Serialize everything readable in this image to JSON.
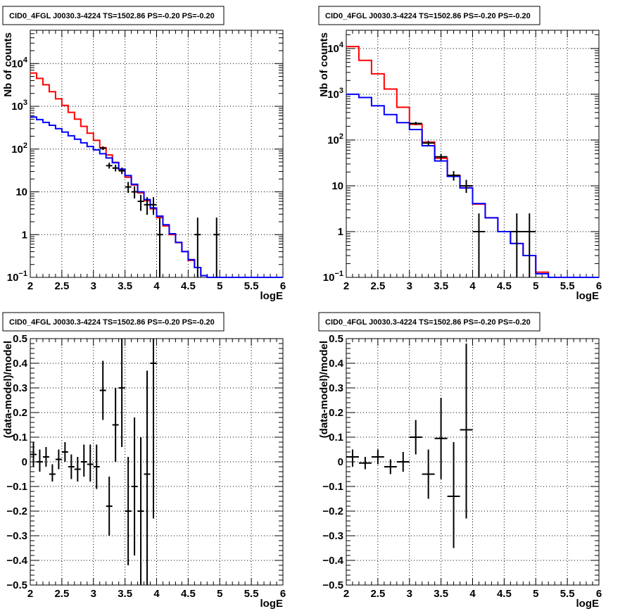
{
  "chart_data": [
    {
      "type": "line",
      "title": "CID0_4FGL J0030.3-4224 TS=1502.86 PS=-0.20 PS=-0.20",
      "xlabel": "logE",
      "ylabel": "Nb of counts",
      "xlim": [
        2,
        6
      ],
      "ylim": [
        0.1,
        60000
      ],
      "yscale": "log",
      "xticks": [
        "2",
        "2.5",
        "3",
        "3.5",
        "4",
        "4.5",
        "5",
        "5.5",
        "6"
      ],
      "yticks": [
        {
          "value": 0.1,
          "base": "10",
          "exp": "−1"
        },
        {
          "value": 1,
          "label": "1"
        },
        {
          "value": 10,
          "label": "10"
        },
        {
          "value": 100,
          "base": "10",
          "exp": "2"
        },
        {
          "value": 1000,
          "base": "10",
          "exp": "3"
        },
        {
          "value": 10000,
          "base": "10",
          "exp": "4"
        }
      ],
      "grid": true,
      "bin_edges": [
        2.0,
        2.1,
        2.2,
        2.3,
        2.4,
        2.5,
        2.6,
        2.7,
        2.8,
        2.9,
        3.0,
        3.1,
        3.2,
        3.3,
        3.4,
        3.5,
        3.6,
        3.7,
        3.8,
        3.9,
        4.0,
        4.1,
        4.2,
        4.3,
        4.4,
        4.5,
        4.6,
        4.7,
        4.8,
        4.9,
        5.0,
        5.1,
        5.2,
        5.3,
        5.4,
        5.5,
        5.6,
        5.7,
        5.8,
        5.9,
        6.0
      ],
      "series": [
        {
          "color": "#ff0000",
          "values": [
            6000,
            4500,
            3200,
            2200,
            1500,
            1050,
            720,
            500,
            340,
            235,
            160,
            108,
            73,
            49,
            33,
            22,
            14.5,
            9.5,
            6.2,
            4.0,
            2.5,
            1.6,
            1.0,
            0.65,
            0.4,
            0.25,
            0.17,
            0.11,
            0.07,
            0.05,
            0.1,
            0.1,
            0.1,
            0.1,
            0.1,
            0.1,
            0.1,
            0.1,
            0.1,
            0.1
          ]
        },
        {
          "color": "#0000ff",
          "values": [
            560,
            490,
            420,
            360,
            300,
            250,
            205,
            170,
            140,
            115,
            96,
            78,
            62,
            48,
            34,
            24,
            15,
            10,
            6.6,
            4.2,
            2.7,
            1.7,
            1.05,
            0.66,
            0.4,
            0.26,
            0.17,
            0.11,
            0.07,
            0.05,
            0.1,
            0.1,
            0.1,
            0.1,
            0.1,
            0.1,
            0.1,
            0.1,
            0.1,
            0.1
          ]
        }
      ],
      "points": [
        {
          "x": 3.15,
          "y": 105,
          "lo": 95,
          "hi": 116
        },
        {
          "x": 3.25,
          "y": 41,
          "lo": 35,
          "hi": 48
        },
        {
          "x": 3.35,
          "y": 36,
          "lo": 30,
          "hi": 43
        },
        {
          "x": 3.45,
          "y": 31,
          "lo": 26,
          "hi": 37
        },
        {
          "x": 3.55,
          "y": 13,
          "lo": 9.5,
          "hi": 17
        },
        {
          "x": 3.65,
          "y": 10,
          "lo": 7,
          "hi": 13.5
        },
        {
          "x": 3.75,
          "y": 6,
          "lo": 3.6,
          "hi": 8.5
        },
        {
          "x": 3.85,
          "y": 5,
          "lo": 2.9,
          "hi": 7.5
        },
        {
          "x": 3.95,
          "y": 5,
          "lo": 2.9,
          "hi": 7.5
        },
        {
          "x": 4.05,
          "y": 1,
          "lo": 0.1,
          "hi": 2.5
        },
        {
          "x": 4.65,
          "y": 1,
          "lo": 0.1,
          "hi": 2.5
        },
        {
          "x": 4.95,
          "y": 1,
          "lo": 0.1,
          "hi": 2.5
        }
      ]
    },
    {
      "type": "line",
      "title": "CID0_4FGL J0030.3-4224 TS=1502.86 PS=-0.20 PS=-0.20",
      "xlabel": "logE",
      "ylabel": "Nb of counts",
      "xlim": [
        2,
        6
      ],
      "ylim": [
        0.1,
        25000
      ],
      "yscale": "log",
      "xticks": [
        "2",
        "2.5",
        "3",
        "3.5",
        "4",
        "4.5",
        "5",
        "5.5",
        "6"
      ],
      "yticks": [
        {
          "value": 0.1,
          "base": "10",
          "exp": "−1"
        },
        {
          "value": 1,
          "label": "1"
        },
        {
          "value": 10,
          "label": "10"
        },
        {
          "value": 100,
          "base": "10",
          "exp": "2"
        },
        {
          "value": 1000,
          "base": "10",
          "exp": "3"
        },
        {
          "value": 10000,
          "base": "10",
          "exp": "4"
        }
      ],
      "grid": true,
      "bin_edges": [
        2.0,
        2.2,
        2.4,
        2.6,
        2.8,
        3.0,
        3.2,
        3.4,
        3.6,
        3.8,
        4.0,
        4.2,
        4.4,
        4.6,
        4.8,
        5.0,
        5.2,
        5.4,
        5.6,
        5.8,
        6.0
      ],
      "series": [
        {
          "color": "#ff0000",
          "values": [
            11000,
            5500,
            2800,
            1300,
            520,
            220,
            90,
            40,
            17,
            9,
            4.0,
            2.0,
            1.0,
            0.55,
            0.3,
            0.13,
            0.1,
            0.1,
            0.1,
            0.1
          ]
        },
        {
          "color": "#0000ff",
          "values": [
            1000,
            850,
            560,
            360,
            240,
            170,
            75,
            35,
            16,
            9,
            4.1,
            2.0,
            1.0,
            0.55,
            0.3,
            0.12,
            0.1,
            0.1,
            0.1,
            0.1
          ]
        }
      ],
      "points": [
        {
          "x": 3.1,
          "y": 230,
          "lo": 212,
          "hi": 250
        },
        {
          "x": 3.3,
          "y": 86,
          "lo": 76,
          "hi": 96
        },
        {
          "x": 3.5,
          "y": 43,
          "lo": 36,
          "hi": 50
        },
        {
          "x": 3.7,
          "y": 17,
          "lo": 13,
          "hi": 21
        },
        {
          "x": 3.9,
          "y": 10,
          "lo": 7,
          "hi": 13.5
        },
        {
          "x": 4.1,
          "y": 1,
          "lo": 0.1,
          "hi": 2.5
        },
        {
          "x": 4.7,
          "y": 1,
          "lo": 0.1,
          "hi": 2.5
        },
        {
          "x": 4.9,
          "y": 1,
          "lo": 0.1,
          "hi": 2.5
        }
      ]
    },
    {
      "type": "scatter",
      "title": "CID0_4FGL J0030.3-4224 TS=1502.86 PS=-0.20 PS=-0.20",
      "xlabel": "logE",
      "ylabel": "(data-model)/model",
      "xlim": [
        2,
        6
      ],
      "ylim": [
        -0.5,
        0.5
      ],
      "yscale": "linear",
      "xticks": [
        "2",
        "2.5",
        "3",
        "3.5",
        "4",
        "4.5",
        "5",
        "5.5",
        "6"
      ],
      "yticks": [
        {
          "value": -0.5,
          "label": "−0.5"
        },
        {
          "value": -0.4,
          "label": "−0.4"
        },
        {
          "value": -0.3,
          "label": "−0.3"
        },
        {
          "value": -0.2,
          "label": "−0.2"
        },
        {
          "value": -0.1,
          "label": "−0.1"
        },
        {
          "value": 0,
          "label": "0"
        },
        {
          "value": 0.1,
          "label": "0.1"
        },
        {
          "value": 0.2,
          "label": "0.2"
        },
        {
          "value": 0.3,
          "label": "0.3"
        },
        {
          "value": 0.4,
          "label": "0.4"
        },
        {
          "value": 0.5,
          "label": "0.5"
        }
      ],
      "grid": true,
      "xerr": 0.05,
      "points": [
        {
          "x": 2.05,
          "y": 0.03,
          "lo": -0.02,
          "hi": 0.08
        },
        {
          "x": 2.15,
          "y": 0.0,
          "lo": -0.04,
          "hi": 0.05
        },
        {
          "x": 2.25,
          "y": 0.02,
          "lo": -0.02,
          "hi": 0.06
        },
        {
          "x": 2.35,
          "y": -0.05,
          "lo": -0.08,
          "hi": -0.01
        },
        {
          "x": 2.45,
          "y": 0.01,
          "lo": -0.03,
          "hi": 0.05
        },
        {
          "x": 2.55,
          "y": 0.04,
          "lo": 0.0,
          "hi": 0.08
        },
        {
          "x": 2.65,
          "y": -0.02,
          "lo": -0.07,
          "hi": 0.03
        },
        {
          "x": 2.75,
          "y": -0.03,
          "lo": -0.08,
          "hi": 0.02
        },
        {
          "x": 2.85,
          "y": 0.0,
          "lo": -0.06,
          "hi": 0.07
        },
        {
          "x": 2.95,
          "y": -0.01,
          "lo": -0.08,
          "hi": 0.07
        },
        {
          "x": 3.05,
          "y": -0.02,
          "lo": -0.11,
          "hi": 0.07
        },
        {
          "x": 3.15,
          "y": 0.29,
          "lo": 0.17,
          "hi": 0.41
        },
        {
          "x": 3.25,
          "y": -0.18,
          "lo": -0.3,
          "hi": -0.06
        },
        {
          "x": 3.35,
          "y": 0.15,
          "lo": 0.0,
          "hi": 0.3
        },
        {
          "x": 3.45,
          "y": 0.3,
          "lo": 0.06,
          "hi": 0.5
        },
        {
          "x": 3.55,
          "y": -0.2,
          "lo": -0.42,
          "hi": 0.02
        },
        {
          "x": 3.65,
          "y": -0.1,
          "lo": -0.38,
          "hi": 0.18
        },
        {
          "x": 3.75,
          "y": -0.2,
          "lo": -0.5,
          "hi": 0.1
        },
        {
          "x": 3.85,
          "y": -0.05,
          "lo": -0.5,
          "hi": 0.37
        },
        {
          "x": 3.95,
          "y": 0.4,
          "lo": -0.23,
          "hi": 0.5
        }
      ]
    },
    {
      "type": "scatter",
      "title": "CID0_4FGL J0030.3-4224 TS=1502.86 PS=-0.20 PS=-0.20",
      "xlabel": "logE",
      "ylabel": "(data-model)/model",
      "xlim": [
        2,
        6
      ],
      "ylim": [
        -0.5,
        0.5
      ],
      "yscale": "linear",
      "xticks": [
        "2",
        "2.5",
        "3",
        "3.5",
        "4",
        "4.5",
        "5",
        "5.5",
        "6"
      ],
      "yticks": [
        {
          "value": -0.5,
          "label": "−0.5"
        },
        {
          "value": -0.4,
          "label": "−0.4"
        },
        {
          "value": -0.3,
          "label": "−0.3"
        },
        {
          "value": -0.2,
          "label": "−0.2"
        },
        {
          "value": -0.1,
          "label": "−0.1"
        },
        {
          "value": 0,
          "label": "0"
        },
        {
          "value": 0.1,
          "label": "0.1"
        },
        {
          "value": 0.2,
          "label": "0.2"
        },
        {
          "value": 0.3,
          "label": "0.3"
        },
        {
          "value": 0.4,
          "label": "0.4"
        },
        {
          "value": 0.5,
          "label": "0.5"
        }
      ],
      "grid": true,
      "xerr": 0.1,
      "points": [
        {
          "x": 2.1,
          "y": 0.02,
          "lo": -0.02,
          "hi": 0.05
        },
        {
          "x": 2.3,
          "y": -0.005,
          "lo": -0.03,
          "hi": 0.02
        },
        {
          "x": 2.5,
          "y": 0.02,
          "lo": -0.01,
          "hi": 0.05
        },
        {
          "x": 2.7,
          "y": -0.02,
          "lo": -0.05,
          "hi": 0.01
        },
        {
          "x": 2.9,
          "y": 0.0,
          "lo": -0.04,
          "hi": 0.04
        },
        {
          "x": 3.1,
          "y": 0.1,
          "lo": 0.03,
          "hi": 0.17
        },
        {
          "x": 3.3,
          "y": -0.05,
          "lo": -0.15,
          "hi": 0.05
        },
        {
          "x": 3.5,
          "y": 0.095,
          "lo": -0.07,
          "hi": 0.26
        },
        {
          "x": 3.7,
          "y": -0.14,
          "lo": -0.35,
          "hi": 0.08
        },
        {
          "x": 3.9,
          "y": 0.13,
          "lo": -0.23,
          "hi": 0.48
        }
      ]
    }
  ]
}
